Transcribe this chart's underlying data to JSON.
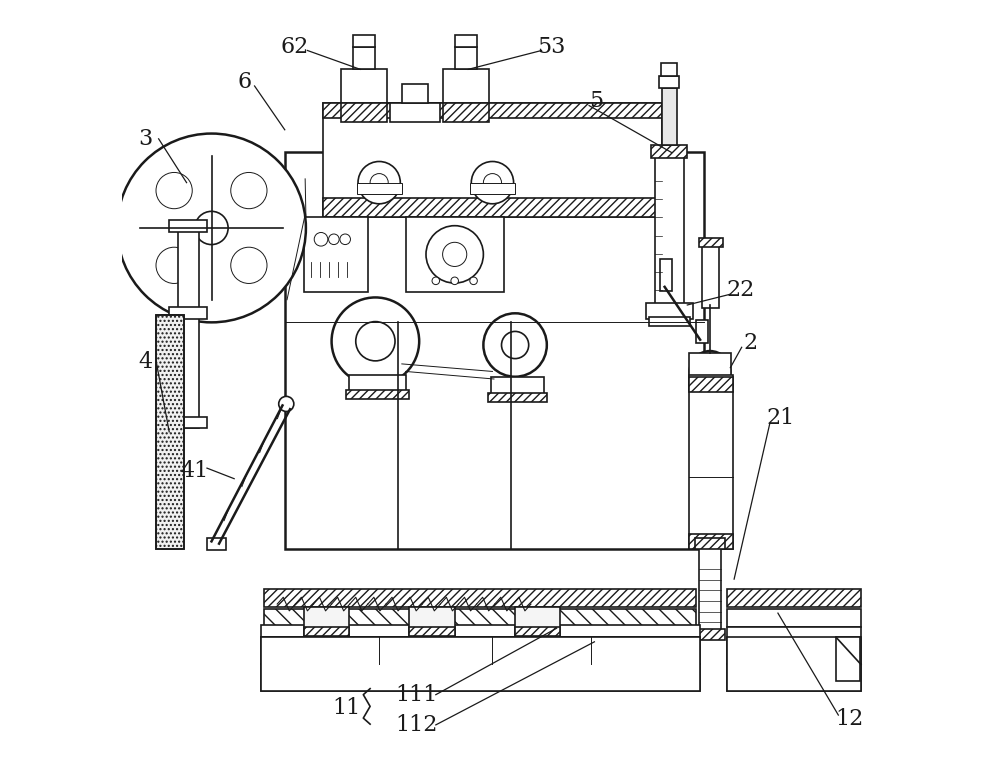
{
  "bg_color": "#ffffff",
  "line_color": "#1a1a1a",
  "fig_width": 10.0,
  "fig_height": 7.58,
  "label_font_size": 16
}
